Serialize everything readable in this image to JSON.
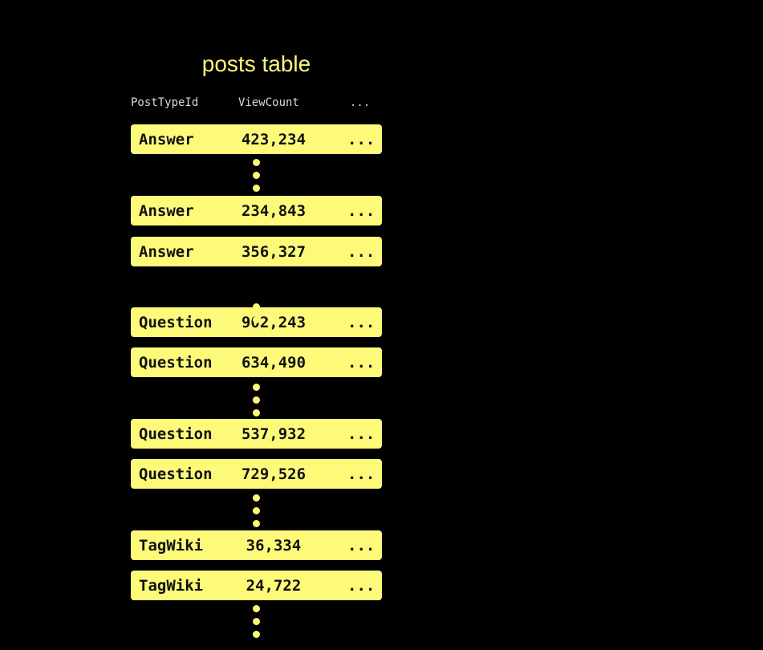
{
  "title": "posts table",
  "columns": [
    "PostTypeId",
    "ViewCount",
    "..."
  ],
  "rows": [
    {
      "type": "Answer",
      "views": "423,234",
      "more": "..."
    },
    {
      "type": "Answer",
      "views": "234,843",
      "more": "..."
    },
    {
      "type": "Answer",
      "views": "356,327",
      "more": "..."
    },
    {
      "type": "Question",
      "views": "902,243",
      "more": "..."
    },
    {
      "type": "Question",
      "views": "634,490",
      "more": "..."
    },
    {
      "type": "Question",
      "views": "537,932",
      "more": "..."
    },
    {
      "type": "Question",
      "views": "729,526",
      "more": "..."
    },
    {
      "type": "TagWiki",
      "views": "36,334",
      "more": "..."
    },
    {
      "type": "TagWiki",
      "views": "24,722",
      "more": "..."
    }
  ],
  "colors": {
    "accent": "#fdfa7a",
    "background": "#000000",
    "header_text": "#d8d8d8"
  }
}
